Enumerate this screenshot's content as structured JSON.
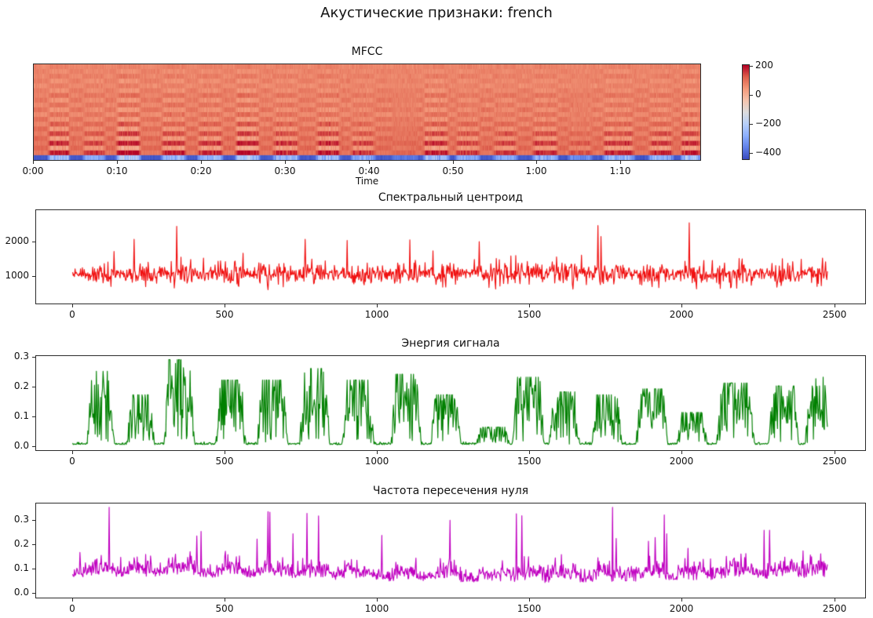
{
  "figure": {
    "title": "Акустические признаки: french"
  },
  "chart_data": [
    {
      "id": "mfcc",
      "type": "heatmap",
      "title": "MFCC",
      "xlabel": "Time",
      "xlim_seconds": [
        0,
        79.6
      ],
      "x_ticks": [
        {
          "v": 0,
          "label": "0:00"
        },
        {
          "v": 10,
          "label": "0:10"
        },
        {
          "v": 20,
          "label": "0:20"
        },
        {
          "v": 30,
          "label": "0:30"
        },
        {
          "v": 40,
          "label": "0:40"
        },
        {
          "v": 50,
          "label": "0:50"
        },
        {
          "v": 60,
          "label": "1:00"
        },
        {
          "v": 70,
          "label": "1:10"
        }
      ],
      "n_coefficients": 20,
      "n_frames": 2480,
      "colormap": "coolwarm",
      "vmin": -450,
      "vmax": 210,
      "colorbar_ticks": [
        {
          "v": 200,
          "label": "200"
        },
        {
          "v": 0,
          "label": "0"
        },
        {
          "v": -200,
          "label": "−200"
        },
        {
          "v": -400,
          "label": "−400"
        }
      ],
      "row_profiles_top_to_bottom": [
        [
          72,
          20
        ],
        [
          80,
          -30
        ],
        [
          70,
          40
        ],
        [
          85,
          -50
        ],
        [
          65,
          35
        ],
        [
          90,
          -60
        ],
        [
          75,
          55
        ],
        [
          95,
          -75
        ],
        [
          70,
          60
        ],
        [
          100,
          -85
        ],
        [
          65,
          75
        ],
        [
          105,
          -95
        ],
        [
          75,
          95
        ],
        [
          110,
          -115
        ],
        [
          85,
          120
        ],
        [
          115,
          -135
        ],
        [
          95,
          150
        ],
        [
          120,
          -160
        ],
        [
          95,
          185
        ],
        [
          -430,
          330
        ]
      ],
      "seed": 7
    },
    {
      "id": "centroid",
      "gen": "centroid",
      "type": "line",
      "title": "Спектральный центроид",
      "color": "#f01010",
      "xlim": [
        -120,
        2604
      ],
      "ylim": [
        180,
        2930
      ],
      "x_range": [
        0,
        2480
      ],
      "x_ticks": [
        {
          "v": 0,
          "label": "0"
        },
        {
          "v": 500,
          "label": "500"
        },
        {
          "v": 1000,
          "label": "1000"
        },
        {
          "v": 1500,
          "label": "1500"
        },
        {
          "v": 2000,
          "label": "2000"
        },
        {
          "v": 2500,
          "label": "2500"
        }
      ],
      "y_ticks": [
        {
          "v": 1000,
          "label": "1000"
        },
        {
          "v": 2000,
          "label": "2000"
        }
      ],
      "params": {
        "base": 1060,
        "jitter": 165,
        "spike_p": 0.016,
        "spike_min": 480,
        "spike_max": 1680,
        "dip_p": 0.012,
        "dip_amt": 480,
        "min": 330,
        "max": 2760
      },
      "seed": 11
    },
    {
      "id": "energy",
      "gen": "energy",
      "type": "line",
      "title": "Энергия сигнала",
      "color": "#008000",
      "xlim": [
        -120,
        2604
      ],
      "ylim": [
        -0.016,
        0.305
      ],
      "x_range": [
        0,
        2480
      ],
      "x_ticks": [
        {
          "v": 0,
          "label": "0"
        },
        {
          "v": 500,
          "label": "500"
        },
        {
          "v": 1000,
          "label": "1000"
        },
        {
          "v": 1500,
          "label": "1500"
        },
        {
          "v": 2000,
          "label": "2000"
        },
        {
          "v": 2500,
          "label": "2500"
        }
      ],
      "y_ticks": [
        {
          "v": 0,
          "label": "0.0"
        },
        {
          "v": 0.1,
          "label": "0.1"
        },
        {
          "v": 0.2,
          "label": "0.2"
        },
        {
          "v": 0.3,
          "label": "0.3"
        }
      ],
      "params": {
        "floor": 0.003,
        "floor_jitter": 0.0035,
        "dip_p": 0.035
      },
      "seed": 23
    },
    {
      "id": "zcr",
      "gen": "zcr",
      "type": "line",
      "title": "Частота пересечения нуля",
      "color": "#c000c0",
      "xlim": [
        -120,
        2604
      ],
      "ylim": [
        -0.023,
        0.371
      ],
      "x_range": [
        0,
        2480
      ],
      "x_ticks": [
        {
          "v": 0,
          "label": "0"
        },
        {
          "v": 500,
          "label": "500"
        },
        {
          "v": 1000,
          "label": "1000"
        },
        {
          "v": 1500,
          "label": "1500"
        },
        {
          "v": 2000,
          "label": "2000"
        },
        {
          "v": 2500,
          "label": "2500"
        }
      ],
      "y_ticks": [
        {
          "v": 0,
          "label": "0.0"
        },
        {
          "v": 0.1,
          "label": "0.1"
        },
        {
          "v": 0.2,
          "label": "0.2"
        },
        {
          "v": 0.3,
          "label": "0.3"
        }
      ],
      "params": {
        "base": 0.052,
        "jitter": 0.027,
        "act_bump": 0.028,
        "spike_p": 0.022,
        "spike_min": 0.05,
        "spike_max": 0.295,
        "min": 0.012,
        "max": 0.355
      },
      "seed": 37
    }
  ],
  "speech_bursts_frames": [
    [
      55,
      130,
      0.25
    ],
    [
      185,
      262,
      0.17
    ],
    [
      308,
      393,
      0.29
    ],
    [
      478,
      563,
      0.22
    ],
    [
      613,
      700,
      0.22
    ],
    [
      753,
      838,
      0.26
    ],
    [
      893,
      983,
      0.22
    ],
    [
      1053,
      1138,
      0.24
    ],
    [
      1183,
      1268,
      0.17
    ],
    [
      1333,
      1428,
      0.06
    ],
    [
      1453,
      1543,
      0.23
    ],
    [
      1573,
      1658,
      0.18
    ],
    [
      1713,
      1798,
      0.17
    ],
    [
      1858,
      1948,
      0.19
    ],
    [
      1993,
      2078,
      0.11
    ],
    [
      2123,
      2233,
      0.21
    ],
    [
      2293,
      2378,
      0.2
    ],
    [
      2413,
      2478,
      0.23
    ]
  ]
}
